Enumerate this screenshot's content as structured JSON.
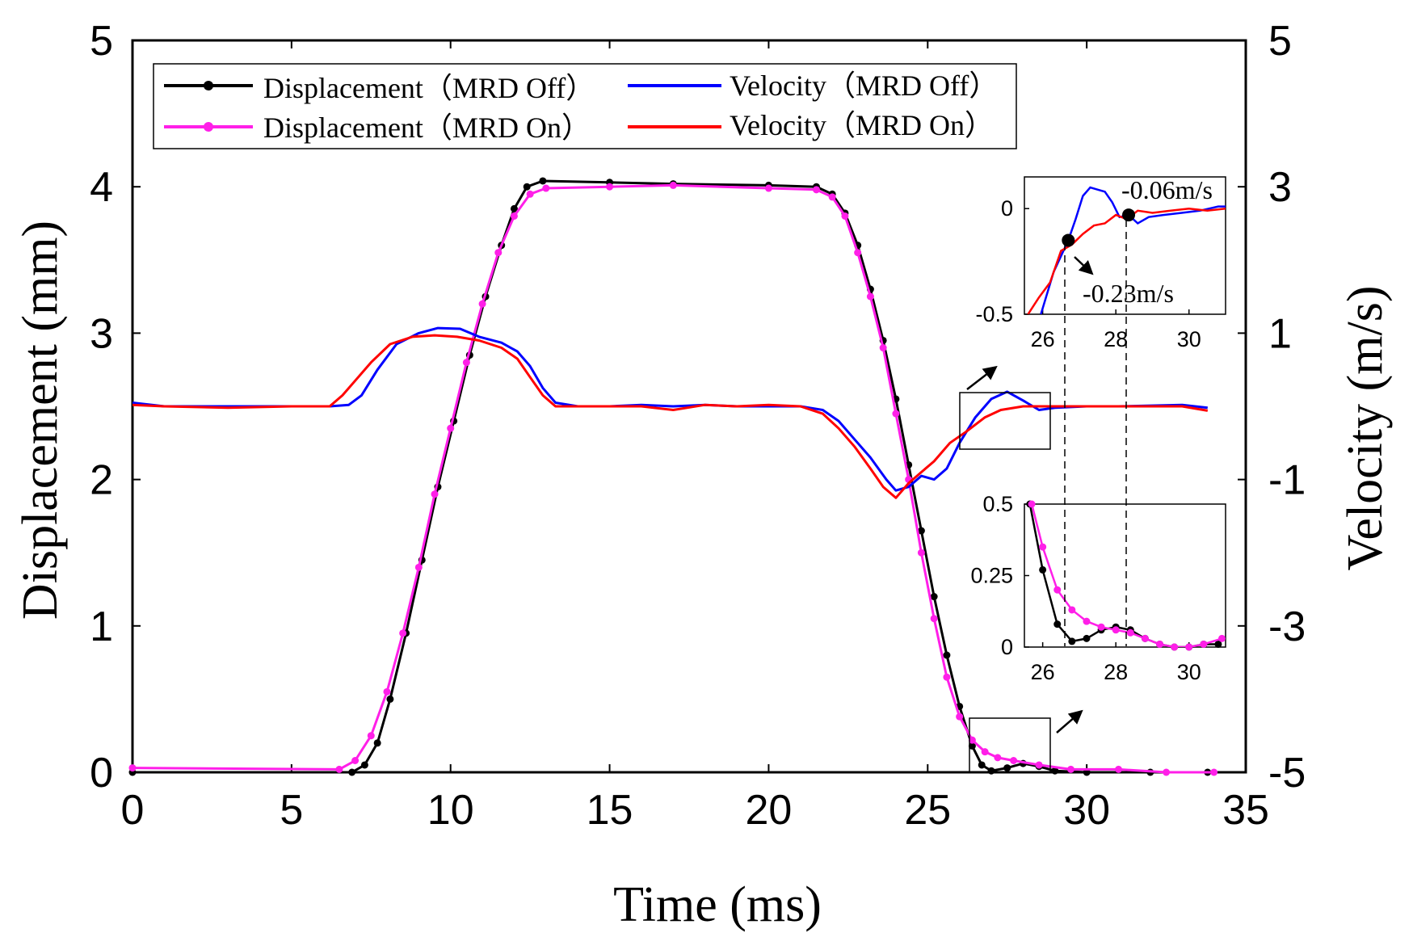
{
  "chart_data": {
    "type": "line",
    "main": {
      "xlabel": "Time (ms)",
      "ylabel_left": "Displacement (mm)",
      "ylabel_right": "Velocity (m/s)",
      "xlim": [
        0,
        35
      ],
      "ylim_left": [
        0,
        5
      ],
      "ylim_right": [
        -5,
        5
      ],
      "x_ticks": [
        "0",
        "5",
        "10",
        "15",
        "20",
        "25",
        "30",
        "35"
      ],
      "y_left_ticks": [
        "0",
        "1",
        "2",
        "3",
        "4",
        "5"
      ],
      "y_right_ticks": [
        "-5",
        "-3",
        "-1",
        "1",
        "3",
        "5"
      ],
      "grid": false,
      "legend_position": "top-left",
      "series": [
        {
          "name": "Displacement（MRD Off）",
          "axis": "left",
          "color": "#000000",
          "marker": "circle",
          "points": [
            [
              0,
              0
            ],
            [
              6.9,
              0
            ],
            [
              7.3,
              0.05
            ],
            [
              7.7,
              0.2
            ],
            [
              8.1,
              0.5
            ],
            [
              8.6,
              0.95
            ],
            [
              9.1,
              1.45
            ],
            [
              9.6,
              1.95
            ],
            [
              10.1,
              2.4
            ],
            [
              10.6,
              2.85
            ],
            [
              11.1,
              3.25
            ],
            [
              11.6,
              3.6
            ],
            [
              12.0,
              3.85
            ],
            [
              12.4,
              4.0
            ],
            [
              12.9,
              4.04
            ],
            [
              15,
              4.03
            ],
            [
              17,
              4.02
            ],
            [
              20,
              4.01
            ],
            [
              21.5,
              4.0
            ],
            [
              22.0,
              3.95
            ],
            [
              22.4,
              3.82
            ],
            [
              22.8,
              3.6
            ],
            [
              23.2,
              3.3
            ],
            [
              23.6,
              2.95
            ],
            [
              24.0,
              2.55
            ],
            [
              24.4,
              2.1
            ],
            [
              24.8,
              1.65
            ],
            [
              25.2,
              1.2
            ],
            [
              25.6,
              0.8
            ],
            [
              26.0,
              0.45
            ],
            [
              26.4,
              0.18
            ],
            [
              26.7,
              0.05
            ],
            [
              27.0,
              0.01
            ],
            [
              27.5,
              0.03
            ],
            [
              28.0,
              0.06
            ],
            [
              28.5,
              0.04
            ],
            [
              29.0,
              0.01
            ],
            [
              30,
              0
            ],
            [
              32,
              0
            ],
            [
              33.8,
              0
            ]
          ]
        },
        {
          "name": "Displacement（MRD On）",
          "axis": "left",
          "color": "#ff1fe8",
          "marker": "circle",
          "points": [
            [
              0,
              0.03
            ],
            [
              6.5,
              0.02
            ],
            [
              7.0,
              0.08
            ],
            [
              7.5,
              0.25
            ],
            [
              8.0,
              0.55
            ],
            [
              8.5,
              0.95
            ],
            [
              9.0,
              1.4
            ],
            [
              9.5,
              1.9
            ],
            [
              10.0,
              2.35
            ],
            [
              10.5,
              2.8
            ],
            [
              11.0,
              3.2
            ],
            [
              11.5,
              3.55
            ],
            [
              12.0,
              3.8
            ],
            [
              12.5,
              3.95
            ],
            [
              13.0,
              3.99
            ],
            [
              15,
              4.0
            ],
            [
              17,
              4.01
            ],
            [
              20,
              3.99
            ],
            [
              21.5,
              3.98
            ],
            [
              22.0,
              3.93
            ],
            [
              22.4,
              3.8
            ],
            [
              22.8,
              3.55
            ],
            [
              23.2,
              3.25
            ],
            [
              23.6,
              2.9
            ],
            [
              24.0,
              2.45
            ],
            [
              24.4,
              2.0
            ],
            [
              24.8,
              1.5
            ],
            [
              25.2,
              1.05
            ],
            [
              25.6,
              0.65
            ],
            [
              26.0,
              0.38
            ],
            [
              26.4,
              0.22
            ],
            [
              26.8,
              0.14
            ],
            [
              27.2,
              0.1
            ],
            [
              27.7,
              0.08
            ],
            [
              28.5,
              0.05
            ],
            [
              29.5,
              0.02
            ],
            [
              31,
              0.02
            ],
            [
              32.5,
              0.0
            ],
            [
              34,
              0.0
            ]
          ]
        },
        {
          "name": "Velocity（MRD Off）",
          "axis": "right",
          "color": "#0000ff",
          "marker": "none",
          "points": [
            [
              0,
              0.05
            ],
            [
              1,
              0.0
            ],
            [
              3,
              0.0
            ],
            [
              5,
              0.0
            ],
            [
              6.2,
              0.0
            ],
            [
              6.8,
              0.02
            ],
            [
              7.2,
              0.15
            ],
            [
              7.7,
              0.5
            ],
            [
              8.3,
              0.85
            ],
            [
              9.0,
              1.0
            ],
            [
              9.6,
              1.07
            ],
            [
              10.3,
              1.06
            ],
            [
              10.9,
              0.95
            ],
            [
              11.6,
              0.87
            ],
            [
              12.1,
              0.75
            ],
            [
              12.5,
              0.55
            ],
            [
              12.9,
              0.25
            ],
            [
              13.3,
              0.05
            ],
            [
              14,
              0.0
            ],
            [
              15,
              0.0
            ],
            [
              16,
              0.02
            ],
            [
              17,
              0.0
            ],
            [
              18,
              0.02
            ],
            [
              19,
              0.0
            ],
            [
              20,
              0.0
            ],
            [
              21,
              0.0
            ],
            [
              21.7,
              -0.05
            ],
            [
              22.2,
              -0.2
            ],
            [
              22.7,
              -0.45
            ],
            [
              23.2,
              -0.7
            ],
            [
              23.7,
              -1.0
            ],
            [
              24.0,
              -1.15
            ],
            [
              24.4,
              -1.1
            ],
            [
              24.8,
              -0.95
            ],
            [
              25.2,
              -1.0
            ],
            [
              25.6,
              -0.85
            ],
            [
              26.0,
              -0.5
            ],
            [
              26.5,
              -0.15
            ],
            [
              27.0,
              0.1
            ],
            [
              27.5,
              0.2
            ],
            [
              28.0,
              0.08
            ],
            [
              28.5,
              -0.05
            ],
            [
              29.0,
              -0.02
            ],
            [
              30,
              0.0
            ],
            [
              31,
              0.0
            ],
            [
              33,
              0.02
            ],
            [
              33.8,
              -0.02
            ]
          ]
        },
        {
          "name": "Velocity（MRD On）",
          "axis": "right",
          "color": "#ff0000",
          "marker": "none",
          "points": [
            [
              0,
              0.02
            ],
            [
              1,
              0.0
            ],
            [
              3,
              -0.02
            ],
            [
              5,
              0.0
            ],
            [
              6.2,
              0.0
            ],
            [
              6.6,
              0.15
            ],
            [
              7.0,
              0.35
            ],
            [
              7.5,
              0.6
            ],
            [
              8.1,
              0.85
            ],
            [
              8.8,
              0.95
            ],
            [
              9.5,
              0.97
            ],
            [
              10.2,
              0.95
            ],
            [
              10.9,
              0.9
            ],
            [
              11.6,
              0.8
            ],
            [
              12.1,
              0.65
            ],
            [
              12.5,
              0.4
            ],
            [
              12.9,
              0.15
            ],
            [
              13.3,
              0.0
            ],
            [
              14,
              0.0
            ],
            [
              15,
              0.0
            ],
            [
              16,
              0.0
            ],
            [
              17,
              -0.05
            ],
            [
              18,
              0.02
            ],
            [
              19,
              0.0
            ],
            [
              20,
              0.02
            ],
            [
              21,
              0.0
            ],
            [
              21.7,
              -0.1
            ],
            [
              22.2,
              -0.3
            ],
            [
              22.7,
              -0.55
            ],
            [
              23.2,
              -0.85
            ],
            [
              23.6,
              -1.1
            ],
            [
              24.0,
              -1.25
            ],
            [
              24.4,
              -1.05
            ],
            [
              24.8,
              -0.9
            ],
            [
              25.2,
              -0.75
            ],
            [
              25.7,
              -0.5
            ],
            [
              26.2,
              -0.35
            ],
            [
              26.8,
              -0.15
            ],
            [
              27.3,
              -0.05
            ],
            [
              28.0,
              0.0
            ],
            [
              29.0,
              0.0
            ],
            [
              31,
              0.0
            ],
            [
              33,
              0.0
            ],
            [
              33.8,
              -0.06
            ]
          ]
        }
      ]
    },
    "inset_velocity": {
      "xlim": [
        25.5,
        31
      ],
      "ylim": [
        -0.5,
        0.15
      ],
      "x_ticks": [
        "26",
        "28",
        "30"
      ],
      "y_ticks": [
        "-0.5",
        "0"
      ],
      "annotations": [
        "-0.06m/s",
        "-0.23m/s"
      ],
      "marked_points": [
        [
          26.7,
          -0.15
        ],
        [
          28.35,
          -0.03
        ]
      ],
      "series": [
        {
          "color": "#0000ff",
          "points": [
            [
              25.95,
              -0.5
            ],
            [
              26.3,
              -0.3
            ],
            [
              26.7,
              -0.15
            ],
            [
              26.9,
              -0.05
            ],
            [
              27.1,
              0.06
            ],
            [
              27.3,
              0.1
            ],
            [
              27.5,
              0.09
            ],
            [
              27.7,
              0.08
            ],
            [
              27.9,
              0.03
            ],
            [
              28.1,
              -0.04
            ],
            [
              28.35,
              -0.03
            ],
            [
              28.6,
              -0.07
            ],
            [
              28.9,
              -0.04
            ],
            [
              29.3,
              -0.03
            ],
            [
              29.8,
              -0.02
            ],
            [
              30.3,
              -0.01
            ],
            [
              30.8,
              0.01
            ],
            [
              31,
              0.01
            ]
          ]
        },
        {
          "color": "#ff0000",
          "points": [
            [
              25.6,
              -0.5
            ],
            [
              25.9,
              -0.42
            ],
            [
              26.2,
              -0.35
            ],
            [
              26.5,
              -0.2
            ],
            [
              26.8,
              -0.17
            ],
            [
              27.1,
              -0.12
            ],
            [
              27.4,
              -0.08
            ],
            [
              27.7,
              -0.07
            ],
            [
              28.0,
              -0.03
            ],
            [
              28.3,
              -0.05
            ],
            [
              28.6,
              -0.01
            ],
            [
              29.0,
              -0.02
            ],
            [
              29.5,
              -0.01
            ],
            [
              30.0,
              0.0
            ],
            [
              30.5,
              -0.01
            ],
            [
              31,
              0.0
            ]
          ]
        }
      ]
    },
    "inset_displacement": {
      "xlim": [
        25.5,
        31
      ],
      "ylim": [
        0,
        0.5
      ],
      "x_ticks": [
        "26",
        "28",
        "30"
      ],
      "y_ticks": [
        "0",
        "0.25",
        "0.5"
      ],
      "series": [
        {
          "color": "#000000",
          "marker": "circle",
          "points": [
            [
              25.65,
              0.5
            ],
            [
              26.0,
              0.27
            ],
            [
              26.4,
              0.08
            ],
            [
              26.8,
              0.02
            ],
            [
              27.2,
              0.03
            ],
            [
              27.6,
              0.06
            ],
            [
              28.0,
              0.07
            ],
            [
              28.4,
              0.06
            ],
            [
              28.8,
              0.03
            ],
            [
              29.2,
              0.01
            ],
            [
              29.6,
              0.0
            ],
            [
              30.0,
              0.0
            ],
            [
              30.4,
              0.01
            ],
            [
              30.8,
              0.01
            ]
          ]
        },
        {
          "color": "#ff1fe8",
          "marker": "circle",
          "points": [
            [
              25.7,
              0.5
            ],
            [
              26.0,
              0.35
            ],
            [
              26.4,
              0.2
            ],
            [
              26.8,
              0.13
            ],
            [
              27.2,
              0.09
            ],
            [
              27.6,
              0.07
            ],
            [
              28.0,
              0.06
            ],
            [
              28.4,
              0.05
            ],
            [
              28.8,
              0.03
            ],
            [
              29.2,
              0.01
            ],
            [
              29.6,
              0.0
            ],
            [
              30.0,
              0.0
            ],
            [
              30.4,
              0.01
            ],
            [
              30.9,
              0.03
            ]
          ]
        }
      ]
    }
  }
}
